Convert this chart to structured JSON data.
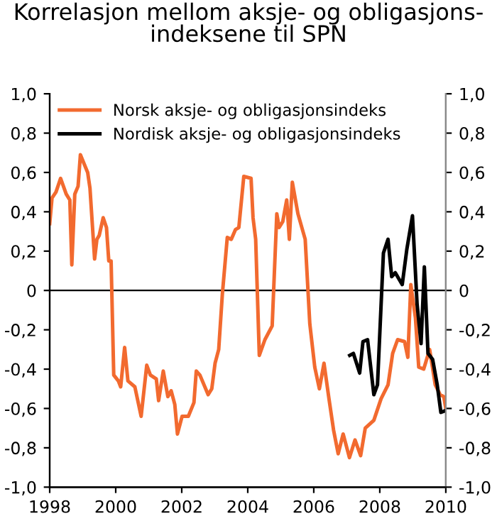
{
  "chart_data": {
    "type": "line",
    "title": "Korrelasjon mellom aksje- og obligasjons-\nindeksene til SPN",
    "xlim": [
      1998,
      2010
    ],
    "xticks": [
      1998,
      2000,
      2002,
      2004,
      2006,
      2008,
      2010
    ],
    "ylim": [
      -1.0,
      1.0
    ],
    "yticks": [
      {
        "value": -1.0,
        "label": "-1,0"
      },
      {
        "value": -0.8,
        "label": "-0,8"
      },
      {
        "value": -0.6,
        "label": "-0,6"
      },
      {
        "value": -0.4,
        "label": "-0,4"
      },
      {
        "value": -0.2,
        "label": "-0,2"
      },
      {
        "value": 0,
        "label": "0"
      },
      {
        "value": 0.2,
        "label": "0,2"
      },
      {
        "value": 0.4,
        "label": "0,4"
      },
      {
        "value": 0.6,
        "label": "0,6"
      },
      {
        "value": 0.8,
        "label": "0,8"
      },
      {
        "value": 1.0,
        "label": "1,0"
      }
    ],
    "y2lim": [
      -1.0,
      1.0
    ],
    "y2ticks": [
      {
        "value": -1.0,
        "label": "-1,0"
      },
      {
        "value": -0.8,
        "label": "-0,8"
      },
      {
        "value": -0.6,
        "label": "-0,6"
      },
      {
        "value": -0.4,
        "label": "-0,4"
      },
      {
        "value": -0.2,
        "label": "-0,2"
      },
      {
        "value": 0,
        "label": "0"
      },
      {
        "value": 0.2,
        "label": "0,2"
      },
      {
        "value": 0.4,
        "label": "0,4"
      },
      {
        "value": 0.6,
        "label": "0,6"
      },
      {
        "value": 0.8,
        "label": "0,8"
      },
      {
        "value": 1.0,
        "label": "1,0"
      }
    ],
    "grid": false,
    "legend": "top left",
    "line_style": "solid",
    "marker": "none",
    "ref_lines": [
      {
        "axis": "y",
        "value": 0,
        "color": "#000000"
      }
    ],
    "series": [
      {
        "name": "Norsk aksje- og obligasjonsindeks",
        "color": "#f26a2f",
        "x": [
          1998.0,
          1998.07,
          1998.19,
          1998.33,
          1998.5,
          1998.61,
          1998.67,
          1998.76,
          1998.86,
          1998.93,
          1999.15,
          1999.22,
          1999.36,
          1999.43,
          1999.5,
          1999.62,
          1999.72,
          1999.79,
          1999.86,
          1999.94,
          2000.08,
          2000.15,
          2000.27,
          2000.37,
          2000.58,
          2000.77,
          2000.94,
          2001.05,
          2001.23,
          2001.3,
          2001.44,
          2001.58,
          2001.68,
          2001.79,
          2001.87,
          2002.01,
          2002.2,
          2002.37,
          2002.44,
          2002.55,
          2002.8,
          2002.91,
          2003.01,
          2003.12,
          2003.23,
          2003.38,
          2003.5,
          2003.63,
          2003.73,
          2003.88,
          2004.1,
          2004.16,
          2004.24,
          2004.35,
          2004.52,
          2004.74,
          2004.88,
          2004.95,
          2005.06,
          2005.18,
          2005.26,
          2005.35,
          2005.52,
          2005.74,
          2005.88,
          2006.03,
          2006.17,
          2006.31,
          2006.46,
          2006.6,
          2006.74,
          2006.89,
          2007.08,
          2007.25,
          2007.42,
          2007.56,
          2007.82,
          2008.04,
          2008.25,
          2008.39,
          2008.54,
          2008.75,
          2008.85,
          2008.94,
          2009.08,
          2009.18,
          2009.33,
          2009.51,
          2009.68,
          2009.83,
          2009.94,
          2010.0
        ],
        "values": [
          0.34,
          0.47,
          0.5,
          0.57,
          0.49,
          0.46,
          0.13,
          0.49,
          0.53,
          0.69,
          0.6,
          0.52,
          0.16,
          0.26,
          0.28,
          0.37,
          0.32,
          0.15,
          0.15,
          -0.43,
          -0.46,
          -0.49,
          -0.29,
          -0.46,
          -0.49,
          -0.64,
          -0.38,
          -0.43,
          -0.45,
          -0.56,
          -0.41,
          -0.54,
          -0.51,
          -0.58,
          -0.73,
          -0.64,
          -0.64,
          -0.57,
          -0.41,
          -0.43,
          -0.53,
          -0.5,
          -0.37,
          -0.3,
          -0.02,
          0.27,
          0.26,
          0.31,
          0.32,
          0.58,
          0.57,
          0.37,
          0.26,
          -0.33,
          -0.25,
          -0.18,
          0.39,
          0.32,
          0.35,
          0.46,
          0.26,
          0.55,
          0.39,
          0.26,
          -0.17,
          -0.39,
          -0.5,
          -0.37,
          -0.55,
          -0.71,
          -0.83,
          -0.73,
          -0.85,
          -0.76,
          -0.84,
          -0.7,
          -0.66,
          -0.55,
          -0.48,
          -0.32,
          -0.25,
          -0.26,
          -0.34,
          0.03,
          -0.14,
          -0.39,
          -0.4,
          -0.3,
          -0.48,
          -0.53,
          -0.54,
          -0.6
        ]
      },
      {
        "name": "Nordisk aksje- og obligasjonsindeks",
        "color": "#000000",
        "x": [
          2007.09,
          2007.2,
          2007.39,
          2007.49,
          2007.63,
          2007.82,
          2007.93,
          2008.11,
          2008.25,
          2008.36,
          2008.47,
          2008.68,
          2008.82,
          2008.99,
          2009.13,
          2009.25,
          2009.35,
          2009.46,
          2009.6,
          2009.74,
          2009.85,
          2010.0
        ],
        "values": [
          -0.33,
          -0.32,
          -0.42,
          -0.26,
          -0.25,
          -0.53,
          -0.48,
          0.19,
          0.26,
          0.07,
          0.09,
          0.03,
          0.21,
          0.38,
          -0.07,
          -0.27,
          0.12,
          -0.32,
          -0.35,
          -0.48,
          -0.62,
          -0.61
        ]
      }
    ]
  }
}
